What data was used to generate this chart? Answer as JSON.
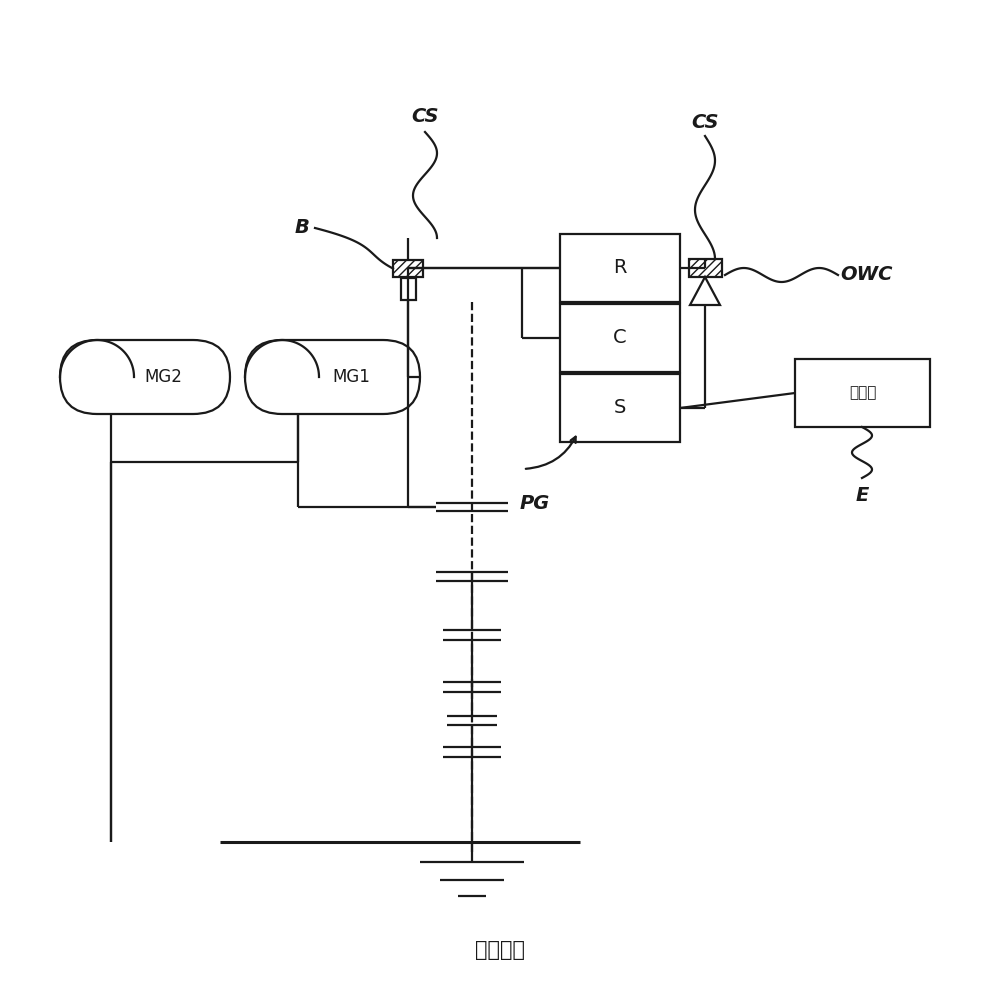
{
  "bg_color": "#ffffff",
  "line_color": "#1a1a1a",
  "title": "现有技术",
  "labels": {
    "MG2": "MG2",
    "MG1": "MG1",
    "R": "R",
    "C": "C",
    "S": "S",
    "engine": "发动机",
    "B": "B",
    "CS_left": "CS",
    "CS_right": "CS",
    "OWC": "OWC",
    "PG": "PG",
    "E": "E"
  },
  "figsize": [
    10.0,
    9.92
  ],
  "dpi": 100,
  "xlim": [
    0,
    10
  ],
  "ylim": [
    0,
    9.92
  ]
}
